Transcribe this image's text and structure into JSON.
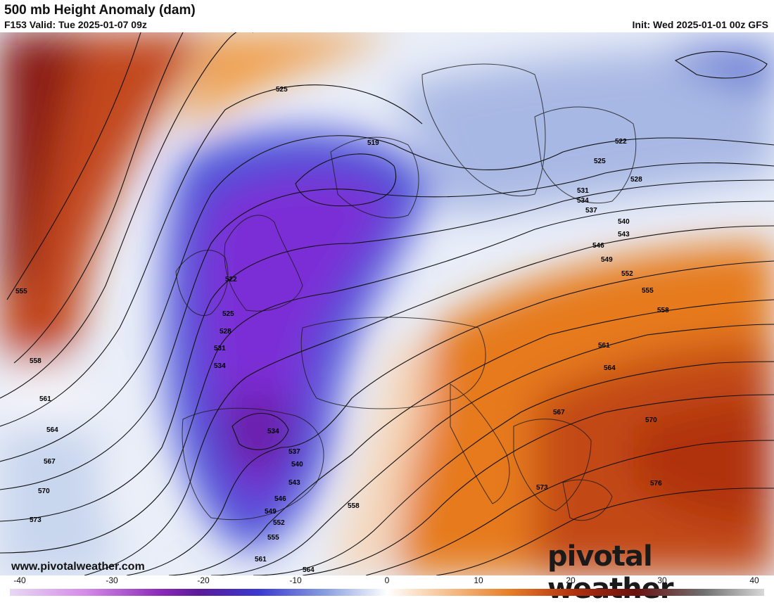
{
  "header": {
    "title": "500 mb Height Anomaly (dam)",
    "valid": "F153 Valid: Tue 2025-01-07 09z",
    "init": "Init: Wed 2025-01-01 00z GFS"
  },
  "footer": {
    "website": "www.pivotalweather.com",
    "logo_text": "pivotal weather"
  },
  "colorbar": {
    "ticks": [
      "-40",
      "-30",
      "-20",
      "-10",
      "0",
      "10",
      "20",
      "30",
      "40"
    ]
  },
  "contour_labels": [
    "519",
    "522",
    "525",
    "525",
    "528",
    "531",
    "534",
    "534",
    "537",
    "540",
    "543",
    "546",
    "549",
    "552",
    "555",
    "555",
    "558",
    "558",
    "561",
    "561",
    "564",
    "564",
    "567",
    "567",
    "570",
    "570",
    "573",
    "573",
    "576",
    "522",
    "525",
    "528",
    "531",
    "534",
    "537",
    "540",
    "543",
    "546",
    "549",
    "552",
    "555",
    "558",
    "561",
    "564",
    "567",
    "570",
    "573",
    "576"
  ],
  "colors": {
    "strong_negative": "#7b2fd6",
    "negative": "#4a5fd8",
    "weak_negative": "#c6d3ee",
    "neutral": "#ffffff",
    "weak_positive": "#f6c08e",
    "positive": "#e67a1e",
    "strong_positive": "#b0300e"
  }
}
